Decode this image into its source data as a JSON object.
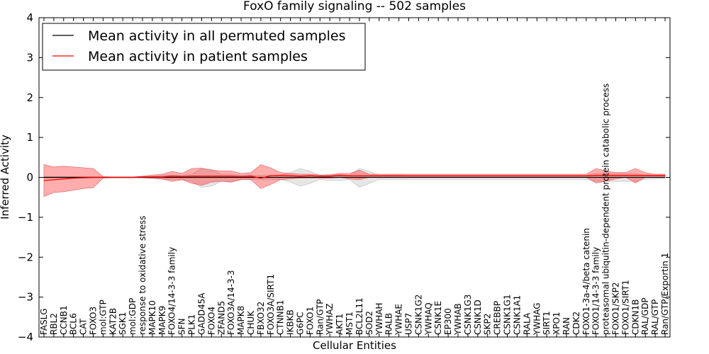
{
  "chart_data": {
    "type": "line",
    "title": "FoxO family signaling -- 502 samples",
    "xlabel": "Cellular Entities",
    "ylabel": "Inferred Activity",
    "ylim": [
      -4,
      4
    ],
    "yticks": [
      "−4",
      "−3",
      "−2",
      "−1",
      "0",
      "1",
      "2",
      "3",
      "4"
    ],
    "legend_position": "top-left",
    "categories": [
      "FASLG",
      "RBL2",
      "CCNB1",
      "BCL6",
      "CAT",
      "FOXO3",
      "mol:GTP",
      "KAT2B",
      "SGK1",
      "mol:GDP",
      "response to oxidative stress",
      "MAPK10",
      "MAPK9",
      "FOXO4/14-3-3 family",
      "SFN",
      "PLK1",
      "GADD45A",
      "FOXO4",
      "ZFAND5",
      "FOXO3A/14-3-3",
      "MAPK8",
      "CHUK",
      "FBXO32",
      "FOXO3A/SIRT1",
      "CTNNB1",
      "IKBKB",
      "G6PC",
      "FOXO1",
      "Ran/GTP",
      "YWHAZ",
      "AKT1",
      "MST1",
      "BCL2L11",
      "SOD2",
      "YWHAH",
      "RALB",
      "YWHAE",
      "USP7",
      "CSNK1G2",
      "YWHAQ",
      "CSNK1E",
      "EP300",
      "YWHAB",
      "CSNK1G3",
      "CSNK1D",
      "SKP2",
      "CREBBP",
      "CSNK1G1",
      "CSNK1A1",
      "RALA",
      "YWHAG",
      "SIRT1",
      "XPO1",
      "RAN",
      "CDK2",
      "FOXO1-3a-4/beta catenin",
      "FOXO1/14-3-3 family",
      "proteasomal ubiquitin-dependent protein catabolic process",
      "FOXO1/SKP2",
      "FOXO1/SIRT1",
      "CDKN1B",
      "RAL/GDP",
      "RAL/GTP",
      "Ran/GTP/Exportin 1"
    ],
    "series": [
      {
        "name": "Mean activity in all permuted samples",
        "color": "#000000",
        "values": [
          0.0,
          0.0,
          0.0,
          0.0,
          0.0,
          0.0,
          0.0,
          0.0,
          0.0,
          0.0,
          0.0,
          0.0,
          0.0,
          0.0,
          0.0,
          0.0,
          0.0,
          0.0,
          0.0,
          0.0,
          0.0,
          0.0,
          0.0,
          0.0,
          0.0,
          0.0,
          0.0,
          0.0,
          0.0,
          0.0,
          0.0,
          0.0,
          0.0,
          0.0,
          0.0,
          0.0,
          0.0,
          0.0,
          0.0,
          0.0,
          0.0,
          0.0,
          0.0,
          0.0,
          0.0,
          0.0,
          0.0,
          0.0,
          0.0,
          0.0,
          0.0,
          0.0,
          0.0,
          0.0,
          0.0,
          0.0,
          0.0,
          0.0,
          0.0,
          0.0,
          0.0,
          0.0,
          0.0,
          0.0
        ],
        "lower": [
          -0.02,
          -0.02,
          -0.02,
          -0.02,
          -0.02,
          -0.02,
          -0.01,
          -0.01,
          -0.01,
          -0.01,
          -0.01,
          -0.03,
          -0.05,
          -0.05,
          -0.05,
          -0.1,
          -0.25,
          -0.22,
          -0.1,
          -0.1,
          -0.05,
          -0.05,
          -0.05,
          -0.05,
          -0.05,
          -0.12,
          -0.22,
          -0.15,
          -0.05,
          -0.08,
          -0.08,
          -0.05,
          -0.25,
          -0.15,
          -0.05,
          -0.06,
          -0.06,
          -0.05,
          -0.05,
          -0.05,
          -0.05,
          -0.05,
          -0.05,
          -0.05,
          -0.05,
          -0.05,
          -0.05,
          -0.05,
          -0.05,
          -0.05,
          -0.05,
          -0.05,
          -0.05,
          -0.05,
          -0.05,
          -0.05,
          -0.1,
          -0.1,
          -0.1,
          -0.1,
          -0.1,
          -0.05,
          -0.04,
          -0.04
        ],
        "upper": [
          0.02,
          0.02,
          0.02,
          0.02,
          0.02,
          0.02,
          0.01,
          0.01,
          0.01,
          0.01,
          0.01,
          0.03,
          0.05,
          0.05,
          0.05,
          0.08,
          0.22,
          0.2,
          0.08,
          0.08,
          0.05,
          0.05,
          0.05,
          0.05,
          0.05,
          0.12,
          0.22,
          0.15,
          0.05,
          0.08,
          0.08,
          0.05,
          0.22,
          0.15,
          0.05,
          0.06,
          0.06,
          0.05,
          0.05,
          0.05,
          0.05,
          0.05,
          0.05,
          0.05,
          0.05,
          0.05,
          0.05,
          0.05,
          0.05,
          0.05,
          0.05,
          0.05,
          0.05,
          0.05,
          0.05,
          0.05,
          0.1,
          0.1,
          0.1,
          0.1,
          0.1,
          0.05,
          0.04,
          0.04
        ]
      },
      {
        "name": "Mean activity in patient samples",
        "color": "#ff0000",
        "values": [
          -0.08,
          -0.06,
          -0.04,
          -0.02,
          -0.01,
          0.0,
          0.0,
          0.0,
          0.0,
          0.0,
          0.01,
          0.01,
          0.01,
          0.03,
          0.02,
          0.03,
          0.03,
          0.03,
          0.03,
          0.03,
          0.02,
          0.03,
          -0.02,
          0.04,
          0.05,
          0.04,
          0.03,
          0.04,
          0.03,
          0.03,
          0.05,
          0.04,
          0.04,
          0.04,
          0.04,
          0.04,
          0.04,
          0.04,
          0.04,
          0.04,
          0.04,
          0.04,
          0.04,
          0.04,
          0.04,
          0.04,
          0.04,
          0.04,
          0.04,
          0.04,
          0.04,
          0.04,
          0.04,
          0.04,
          0.04,
          0.04,
          0.05,
          0.05,
          0.05,
          0.05,
          0.05,
          0.05,
          0.05,
          0.05
        ],
        "lower": [
          -0.48,
          -0.38,
          -0.36,
          -0.32,
          -0.28,
          -0.26,
          -0.02,
          -0.01,
          -0.01,
          -0.01,
          -0.01,
          -0.02,
          -0.04,
          -0.1,
          -0.06,
          -0.15,
          -0.2,
          -0.12,
          -0.1,
          -0.12,
          -0.06,
          -0.06,
          -0.28,
          -0.18,
          -0.06,
          -0.04,
          -0.02,
          -0.02,
          -0.02,
          -0.02,
          0.0,
          -0.04,
          -0.06,
          0.0,
          0.0,
          0.0,
          0.0,
          0.0,
          0.0,
          0.0,
          0.0,
          0.0,
          0.0,
          0.0,
          0.0,
          0.0,
          0.0,
          0.0,
          0.0,
          0.0,
          0.0,
          0.0,
          0.0,
          0.0,
          0.0,
          0.0,
          -0.14,
          -0.1,
          -0.04,
          0.0,
          -0.14,
          0.0,
          0.0,
          0.0
        ],
        "upper": [
          0.32,
          0.26,
          0.28,
          0.26,
          0.24,
          0.22,
          0.02,
          0.01,
          0.01,
          0.01,
          0.03,
          0.06,
          0.08,
          0.15,
          0.1,
          0.22,
          0.23,
          0.18,
          0.16,
          0.16,
          0.1,
          0.12,
          0.32,
          0.24,
          0.12,
          0.1,
          0.08,
          0.08,
          0.06,
          0.06,
          0.1,
          0.1,
          0.18,
          0.08,
          0.08,
          0.08,
          0.08,
          0.08,
          0.08,
          0.08,
          0.08,
          0.08,
          0.08,
          0.08,
          0.08,
          0.08,
          0.08,
          0.08,
          0.08,
          0.08,
          0.08,
          0.08,
          0.08,
          0.08,
          0.08,
          0.08,
          0.22,
          0.16,
          0.12,
          0.12,
          0.22,
          0.12,
          0.08,
          0.08
        ]
      }
    ]
  }
}
